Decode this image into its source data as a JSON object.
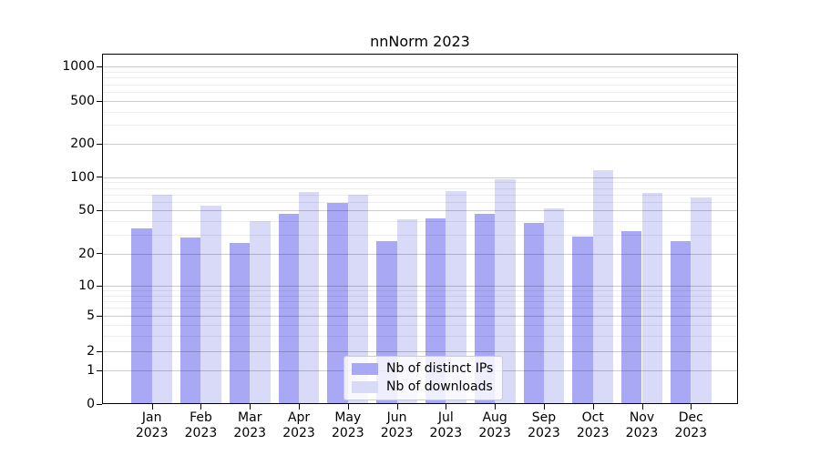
{
  "chart_data": {
    "type": "bar",
    "title": "nnNorm 2023",
    "categories": [
      "Jan",
      "Feb",
      "Mar",
      "Apr",
      "May",
      "Jun",
      "Jul",
      "Aug",
      "Sep",
      "Oct",
      "Nov",
      "Dec"
    ],
    "x_tick_second_line": "2023",
    "series": [
      {
        "name": "Nb of distinct IPs",
        "color": "#a8a8f5",
        "values": [
          34,
          28,
          25,
          46,
          58,
          26,
          42,
          46,
          38,
          29,
          32,
          26
        ]
      },
      {
        "name": "Nb of downloads",
        "color": "#d9d9f8",
        "values": [
          69,
          55,
          40,
          74,
          69,
          41,
          75,
          97,
          52,
          116,
          72,
          66
        ]
      }
    ],
    "y_ticks": [
      0,
      1,
      2,
      5,
      10,
      20,
      50,
      100,
      200,
      500,
      1000
    ],
    "ylim": [
      0,
      1400
    ],
    "scale": "log-like",
    "grid": "horizontal major and minor gridlines",
    "legend_position": "inside bottom-center",
    "axis_color": "#000000",
    "background_color": "#ffffff"
  }
}
